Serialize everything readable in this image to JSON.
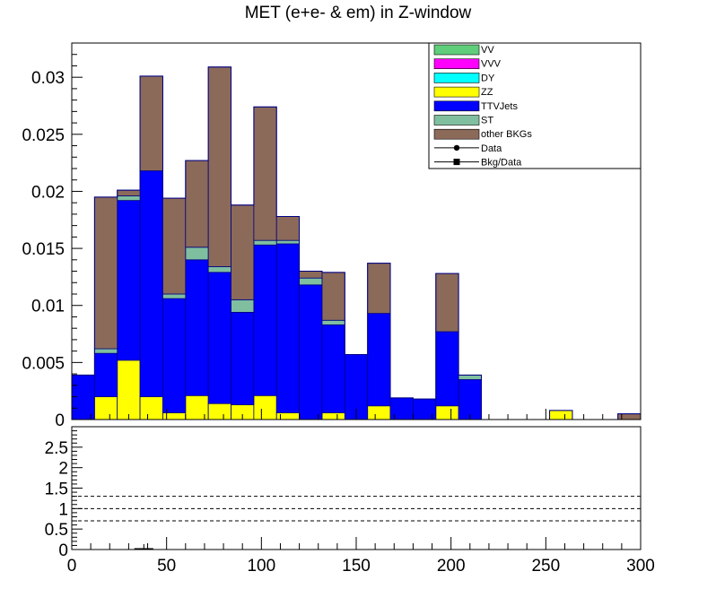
{
  "title": "MET (e+e- & em) in Z-window",
  "chart_data": [
    {
      "type": "bar",
      "stacked": true,
      "title": "MET (e+e- & em) in Z-window",
      "xlim": [
        0,
        300
      ],
      "ylim": [
        0,
        0.033
      ],
      "bin_width": 12,
      "x_ticks": [
        "0",
        "50",
        "100",
        "150",
        "200",
        "250",
        "300"
      ],
      "y_ticks": [
        "0",
        "0.005",
        "0.01",
        "0.015",
        "0.02",
        "0.025",
        "0.03"
      ],
      "y_tick_values": [
        0,
        0.005,
        0.01,
        0.015,
        0.02,
        0.025,
        0.03
      ],
      "x_tick_values": [
        0,
        50,
        100,
        150,
        200,
        250,
        300
      ],
      "legend_position": "top-right",
      "colors": {
        "VV": "#5fcd7a",
        "VVV": "#ff00ff",
        "DY": "#00ffff",
        "ZZ": "#ffff00",
        "TTVJets": "#0000ff",
        "ST": "#7fbf9f",
        "other BKGs": "#8b6a5a",
        "outline": "#000080"
      },
      "legend": [
        {
          "name": "VV",
          "style": "box",
          "color": "#5fcd7a"
        },
        {
          "name": "VVV",
          "style": "box",
          "color": "#ff00ff"
        },
        {
          "name": "DY",
          "style": "box",
          "color": "#00ffff"
        },
        {
          "name": "ZZ",
          "style": "box",
          "color": "#ffff00"
        },
        {
          "name": "TTVJets",
          "style": "box",
          "color": "#0000ff"
        },
        {
          "name": "ST",
          "style": "box",
          "color": "#7fbf9f"
        },
        {
          "name": "other BKGs",
          "style": "box",
          "color": "#8b6a5a"
        },
        {
          "name": "Data",
          "style": "marker-circle",
          "color": "#000000"
        },
        {
          "name": "Bkg/Data",
          "style": "marker-square",
          "color": "#000000"
        }
      ],
      "bins": [
        0,
        12,
        24,
        36,
        48,
        60,
        72,
        84,
        96,
        108,
        120,
        132,
        144,
        156,
        168,
        180,
        192,
        204,
        216,
        228,
        240,
        252,
        264,
        276,
        288
      ],
      "series": [
        {
          "name": "ZZ",
          "values": [
            0,
            0.002,
            0.0052,
            0.002,
            0.0006,
            0.0021,
            0.0014,
            0.0013,
            0.0021,
            0.0006,
            0,
            0.0006,
            0,
            0.0012,
            0,
            0,
            0.0012,
            0,
            0,
            0,
            0,
            0.0008,
            0,
            0,
            0
          ]
        },
        {
          "name": "TTVJets",
          "values": [
            0.0039,
            0.0038,
            0.014,
            0.0198,
            0.01,
            0.0119,
            0.0115,
            0.0081,
            0.0132,
            0.0148,
            0.0118,
            0.0077,
            0.0057,
            0.0081,
            0.0019,
            0.0018,
            0.0065,
            0.0035,
            0,
            0,
            0,
            0,
            0,
            0,
            0
          ]
        },
        {
          "name": "ST",
          "values": [
            0,
            0.0004,
            0.0004,
            0,
            0.0004,
            0.0011,
            0.0005,
            0.0011,
            0.0004,
            0.0003,
            0.0006,
            0.0004,
            0,
            0,
            0,
            0,
            0,
            0.0004,
            0,
            0,
            0,
            0,
            0,
            0,
            0
          ]
        },
        {
          "name": "other BKGs",
          "values": [
            0,
            0.0133,
            0.0005,
            0.0083,
            0.0084,
            0.0076,
            0.0175,
            0.0083,
            0.0117,
            0.0021,
            0.0006,
            0.0042,
            0,
            0.0044,
            0,
            0,
            0.0051,
            0,
            0,
            0,
            0,
            0,
            0,
            0,
            0.0005
          ]
        }
      ]
    },
    {
      "type": "scatter",
      "xlim": [
        0,
        300
      ],
      "ylim": [
        0,
        3
      ],
      "y_ticks": [
        "0",
        "0.5",
        "1",
        "1.5",
        "2",
        "2.5"
      ],
      "y_tick_values": [
        0,
        0.5,
        1,
        1.5,
        2,
        2.5
      ],
      "reference_lines": [
        0.7,
        1.0,
        1.3
      ],
      "points": []
    }
  ]
}
